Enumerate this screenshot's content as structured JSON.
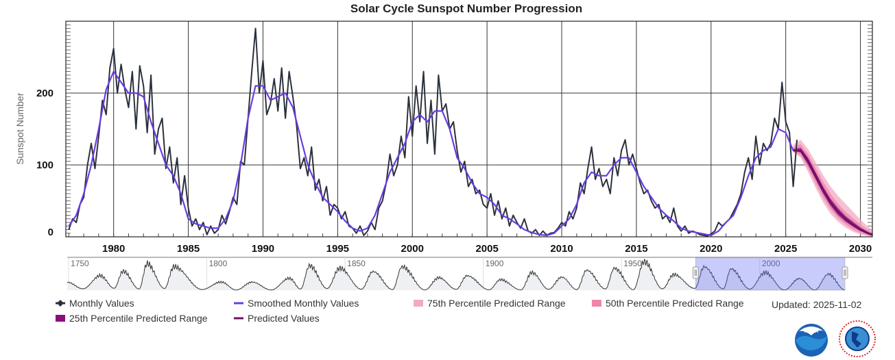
{
  "chart_data": {
    "type": "line",
    "title": "Solar Cycle Sunspot Number Progression",
    "xlabel": "",
    "ylabel": "Sunspot Number",
    "xlim": [
      1976.8,
      2030.8
    ],
    "ylim": [
      0,
      300
    ],
    "x_ticks": [
      "1980",
      "1985",
      "1990",
      "1995",
      "2000",
      "2005",
      "2010",
      "2015",
      "2020",
      "2025",
      "2030"
    ],
    "y_ticks": [
      "0",
      "100",
      "200"
    ],
    "grid": true,
    "legend_position": "bottom",
    "series": [
      {
        "name": "Monthly Values",
        "color": "#2a313c",
        "x_start": 1977.0,
        "x_step": 0.25,
        "values": [
          10,
          25,
          20,
          45,
          55,
          100,
          130,
          95,
          140,
          190,
          170,
          235,
          262,
          200,
          240,
          205,
          180,
          230,
          150,
          238,
          210,
          145,
          225,
          115,
          150,
          165,
          95,
          125,
          75,
          110,
          45,
          85,
          40,
          15,
          25,
          10,
          20,
          3,
          15,
          5,
          10,
          30,
          18,
          35,
          55,
          45,
          105,
          100,
          165,
          230,
          290,
          200,
          245,
          170,
          185,
          220,
          175,
          235,
          165,
          230,
          195,
          155,
          95,
          110,
          85,
          125,
          65,
          80,
          50,
          70,
          30,
          45,
          40,
          25,
          35,
          15,
          12,
          5,
          15,
          2,
          8,
          20,
          10,
          40,
          50,
          75,
          115,
          85,
          100,
          140,
          110,
          195,
          140,
          210,
          160,
          230,
          130,
          190,
          115,
          225,
          175,
          185,
          150,
          160,
          120,
          90,
          105,
          70,
          80,
          60,
          65,
          45,
          40,
          60,
          30,
          50,
          25,
          40,
          15,
          30,
          20,
          12,
          25,
          8,
          5,
          10,
          2,
          8,
          2,
          5,
          6,
          12,
          20,
          15,
          35,
          25,
          40,
          75,
          60,
          95,
          125,
          80,
          95,
          70,
          80,
          60,
          110,
          85,
          120,
          135,
          100,
          115,
          95,
          75,
          60,
          65,
          50,
          40,
          45,
          25,
          30,
          20,
          40,
          15,
          8,
          15,
          5,
          8,
          6,
          3,
          2,
          1,
          4,
          8,
          20,
          15,
          20,
          25,
          35,
          45,
          60,
          90,
          110,
          80,
          140,
          100,
          130,
          120,
          130,
          165,
          150,
          215,
          160,
          145,
          70,
          135
        ]
      },
      {
        "name": "Smoothed Monthly Values",
        "color": "#6a3be4",
        "x_start": 1977.0,
        "x_step": 0.5,
        "values": [
          15,
          30,
          60,
          100,
          150,
          205,
          230,
          215,
          200,
          200,
          195,
          160,
          130,
          100,
          85,
          60,
          25,
          18,
          15,
          12,
          12,
          25,
          50,
          100,
          165,
          210,
          210,
          190,
          195,
          200,
          180,
          140,
          100,
          75,
          55,
          45,
          35,
          22,
          12,
          8,
          12,
          30,
          60,
          90,
          110,
          130,
          160,
          170,
          160,
          175,
          175,
          150,
          110,
          95,
          75,
          60,
          55,
          45,
          30,
          25,
          18,
          10,
          6,
          3,
          2,
          5,
          15,
          25,
          45,
          75,
          90,
          85,
          85,
          100,
          110,
          110,
          90,
          70,
          55,
          40,
          30,
          22,
          12,
          8,
          6,
          4,
          2,
          8,
          20,
          30,
          55,
          85,
          110,
          120,
          125,
          150,
          145,
          120
        ]
      },
      {
        "name": "Predicted Values",
        "color": "#6e1066",
        "x": [
          2025.5,
          2026.0,
          2026.5,
          2027.0,
          2027.5,
          2028.0,
          2028.5,
          2029.0,
          2029.5,
          2030.0,
          2030.5,
          2030.8
        ],
        "values": [
          120,
          120,
          105,
          85,
          65,
          48,
          35,
          25,
          17,
          10,
          5,
          3
        ]
      }
    ],
    "ranges": [
      {
        "name": "75th Percentile Predicted Range",
        "color": "#f3a9c4",
        "low": [
          118,
          110,
          90,
          68,
          48,
          32,
          21,
          13,
          7,
          3,
          1,
          0
        ],
        "high": [
          128,
          135,
          122,
          104,
          86,
          70,
          57,
          46,
          35,
          24,
          14,
          10
        ]
      },
      {
        "name": "50th Percentile Predicted Range",
        "color": "#ef86a9",
        "low": [
          119,
          113,
          95,
          74,
          54,
          38,
          26,
          17,
          10,
          5,
          2,
          1
        ],
        "high": [
          125,
          129,
          115,
          96,
          77,
          60,
          46,
          35,
          26,
          17,
          10,
          6
        ]
      },
      {
        "name": "25th Percentile Predicted Range",
        "color": "#8a0f7c",
        "low": [
          120,
          117,
          100,
          80,
          60,
          43,
          30,
          21,
          14,
          8,
          4,
          2
        ],
        "high": [
          122,
          124,
          110,
          90,
          70,
          53,
          40,
          29,
          21,
          13,
          7,
          4
        ]
      }
    ]
  },
  "navigator": {
    "xlim": [
      1749.5,
      2030.8
    ],
    "labels": [
      "1750",
      "1800",
      "1850",
      "1900",
      "1950",
      "2000"
    ],
    "selected_range": [
      1976.8,
      2030.8
    ],
    "minima": [
      [
        1755.2,
        14
      ],
      [
        1766.5,
        19
      ],
      [
        1775.5,
        12
      ],
      [
        1784.7,
        17
      ],
      [
        1798.3,
        7
      ],
      [
        1810.6,
        2
      ],
      [
        1823.3,
        2
      ],
      [
        1833.9,
        12
      ],
      [
        1843.5,
        17
      ],
      [
        1855.9,
        10
      ],
      [
        1867.2,
        6
      ],
      [
        1878.9,
        3
      ],
      [
        1890.2,
        9
      ],
      [
        1902.1,
        4
      ],
      [
        1913.6,
        3
      ],
      [
        1923.6,
        9
      ],
      [
        1933.8,
        6
      ],
      [
        1944.2,
        13
      ],
      [
        1954.3,
        5
      ],
      [
        1964.8,
        14
      ],
      [
        1976.5,
        18
      ],
      [
        1986.8,
        13
      ],
      [
        1996.4,
        11
      ],
      [
        2008.9,
        2
      ],
      [
        2019.9,
        2
      ],
      [
        2030.8,
        3
      ]
    ],
    "peaks": [
      [
        1749.5,
        80
      ],
      [
        1761.5,
        145
      ],
      [
        1769.7,
        190
      ],
      [
        1778.4,
        265
      ],
      [
        1788.1,
        235
      ],
      [
        1805.2,
        82
      ],
      [
        1816.4,
        81
      ],
      [
        1829.9,
        119
      ],
      [
        1837.2,
        245
      ],
      [
        1848.1,
        220
      ],
      [
        1860.1,
        186
      ],
      [
        1870.6,
        234
      ],
      [
        1883.9,
        125
      ],
      [
        1894.1,
        144
      ],
      [
        1906.2,
        105
      ],
      [
        1917.6,
        176
      ],
      [
        1928.4,
        130
      ],
      [
        1937.4,
        199
      ],
      [
        1947.4,
        219
      ],
      [
        1958.2,
        285
      ],
      [
        1968.9,
        156
      ],
      [
        1979.9,
        233
      ],
      [
        1989.6,
        212
      ],
      [
        2001.9,
        176
      ],
      [
        2014.3,
        116
      ],
      [
        2024.8,
        160
      ]
    ]
  },
  "legend": [
    {
      "label": "Monthly Values",
      "color": "#2a313c",
      "marker": "diamond-line"
    },
    {
      "label": "Smoothed Monthly Values",
      "color": "#6a3be4",
      "marker": "line"
    },
    {
      "label": "75th Percentile Predicted Range",
      "color": "#f3a9c4",
      "marker": "square"
    },
    {
      "label": "50th Percentile Predicted Range",
      "color": "#ef86a9",
      "marker": "square"
    },
    {
      "label": "25th Percentile Predicted Range",
      "color": "#8a0f7c",
      "marker": "square"
    },
    {
      "label": "Predicted Values",
      "color": "#6e1066",
      "marker": "line"
    }
  ],
  "updated": "Updated: 2025-11-02",
  "logos": {
    "noaa": "NOAA",
    "nws": "NATIONAL WEATHER SERVICE"
  }
}
